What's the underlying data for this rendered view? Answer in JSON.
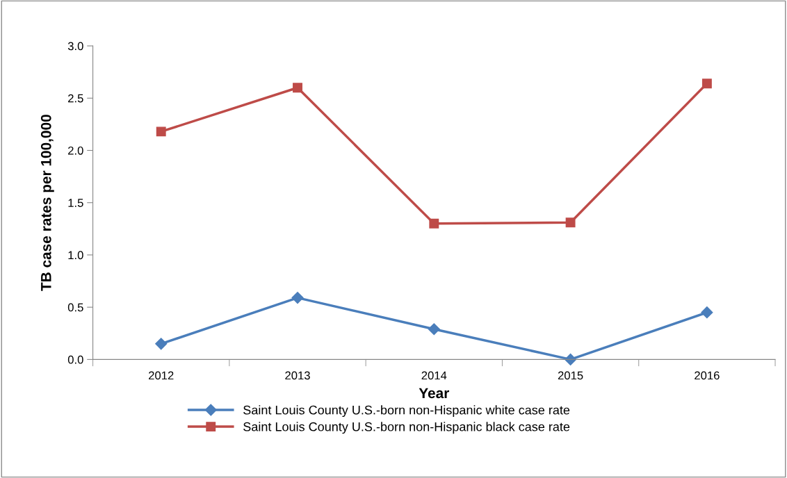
{
  "chart_data": {
    "type": "line",
    "xlabel": "Year",
    "ylabel": "TB case rates per 100,000",
    "categories": [
      "2012",
      "2013",
      "2014",
      "2015",
      "2016"
    ],
    "series": [
      {
        "name": "Saint Louis County U.S.-born non-Hispanic white case rate",
        "color": "#4a7ebb",
        "marker": "diamond",
        "values": [
          0.15,
          0.59,
          0.29,
          0.0,
          0.45
        ]
      },
      {
        "name": "Saint Louis County U.S.-born non-Hispanic black case rate",
        "color": "#be4b48",
        "marker": "square",
        "values": [
          2.18,
          2.6,
          1.3,
          1.31,
          2.64
        ]
      }
    ],
    "ylim": [
      0,
      3
    ],
    "yticks": [
      {
        "value": 0,
        "label": "0.0"
      },
      {
        "value": 0.5,
        "label": "0.5"
      },
      {
        "value": 1,
        "label": "1.0"
      },
      {
        "value": 1.5,
        "label": "1.5"
      },
      {
        "value": 2,
        "label": "2.0"
      },
      {
        "value": 2.5,
        "label": "2.5"
      },
      {
        "value": 3,
        "label": "3.0"
      }
    ],
    "grid": false,
    "legend": "bottom",
    "line_style": "solid"
  }
}
